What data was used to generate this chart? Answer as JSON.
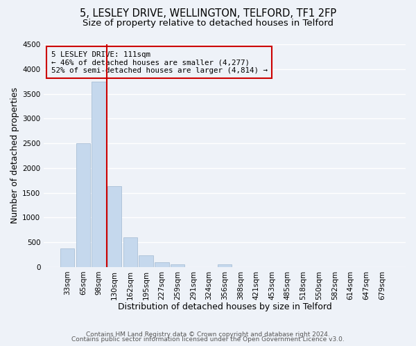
{
  "title_line1": "5, LESLEY DRIVE, WELLINGTON, TELFORD, TF1 2FP",
  "title_line2": "Size of property relative to detached houses in Telford",
  "xlabel": "Distribution of detached houses by size in Telford",
  "ylabel": "Number of detached properties",
  "bar_labels": [
    "33sqm",
    "65sqm",
    "98sqm",
    "130sqm",
    "162sqm",
    "195sqm",
    "227sqm",
    "259sqm",
    "291sqm",
    "324sqm",
    "356sqm",
    "388sqm",
    "421sqm",
    "453sqm",
    "485sqm",
    "518sqm",
    "550sqm",
    "582sqm",
    "614sqm",
    "647sqm",
    "679sqm"
  ],
  "bar_values": [
    380,
    2500,
    3750,
    1640,
    600,
    240,
    100,
    55,
    0,
    0,
    55,
    0,
    0,
    0,
    0,
    0,
    0,
    0,
    0,
    0,
    0
  ],
  "bar_color": "#c5d8ed",
  "bar_edge_color": "#a0b8d0",
  "highlight_line_color": "#cc0000",
  "annotation_title": "5 LESLEY DRIVE: 111sqm",
  "annotation_line2": "← 46% of detached houses are smaller (4,277)",
  "annotation_line3": "52% of semi-detached houses are larger (4,814) →",
  "annotation_box_color": "#cc0000",
  "ylim": [
    0,
    4500
  ],
  "yticks": [
    0,
    500,
    1000,
    1500,
    2000,
    2500,
    3000,
    3500,
    4000,
    4500
  ],
  "footer_line1": "Contains HM Land Registry data © Crown copyright and database right 2024.",
  "footer_line2": "Contains public sector information licensed under the Open Government Licence v3.0.",
  "bg_color": "#eef2f8",
  "grid_color": "#ffffff",
  "title_fontsize": 10.5,
  "subtitle_fontsize": 9.5,
  "axis_label_fontsize": 9,
  "tick_fontsize": 7.5,
  "footer_fontsize": 6.5
}
